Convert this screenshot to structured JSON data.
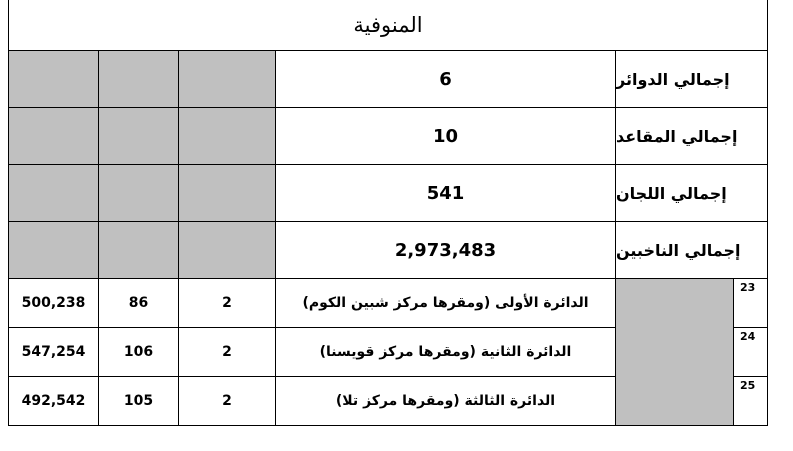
{
  "title": "المنوفية",
  "summary": [
    {
      "label": "إجمالي الدوائر",
      "value": "6"
    },
    {
      "label": "إجمالي المقاعد",
      "value": "10"
    },
    {
      "label": "إجمالي اللجان",
      "value": "541"
    },
    {
      "label": "إجمالي الناخبين",
      "value": "2,973,483"
    }
  ],
  "districts": [
    {
      "index": "23",
      "name": "الدائرة الأولى (ومقرها مركز شبين الكوم)",
      "seats": "2",
      "committees": "86",
      "voters": "500,238"
    },
    {
      "index": "24",
      "name": "الدائرة الثانية (ومقرها مركز قويسنا)",
      "seats": "2",
      "committees": "106",
      "voters": "547,254"
    },
    {
      "index": "25",
      "name": "الدائرة الثالثة (ومقرها مركز تلا)",
      "seats": "2",
      "committees": "105",
      "voters": "492,542"
    }
  ]
}
